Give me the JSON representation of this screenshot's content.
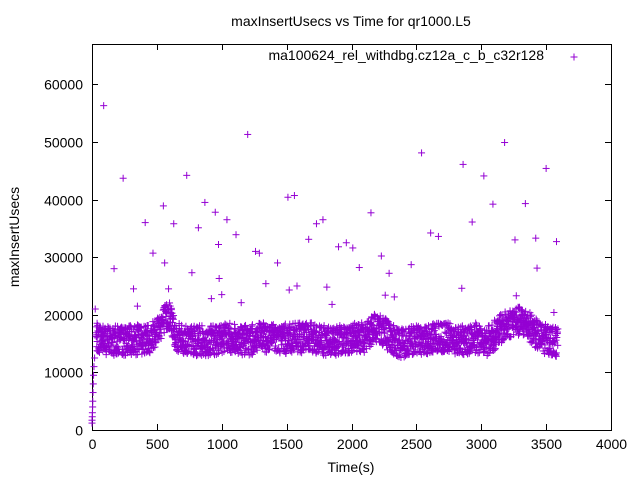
{
  "chart_data": {
    "type": "scatter",
    "title": "maxInsertUsecs vs Time for qr1000.L5",
    "xlabel": "Time(s)",
    "ylabel": "maxInsertUsecs",
    "xlim": [
      0,
      4000
    ],
    "ylim": [
      0,
      67000
    ],
    "xticks": [
      0,
      500,
      1000,
      1500,
      2000,
      2500,
      3000,
      3500,
      4000
    ],
    "yticks": [
      0,
      10000,
      20000,
      30000,
      40000,
      50000,
      60000
    ],
    "xtick_labels": [
      "0",
      "500",
      "1000",
      "1500",
      "2000",
      "2500",
      "3000",
      "3500",
      "4000"
    ],
    "ytick_labels": [
      "0",
      "10000",
      "20000",
      "30000",
      "40000",
      "50000",
      "60000"
    ],
    "grid": false,
    "legend_position": "top-right",
    "marker": "+",
    "color": "#9400d3",
    "series": [
      {
        "name": "ma100624_rel_withdbg.cz12a_c_b_c32r128",
        "points": [
          [
            0,
            1200
          ],
          [
            0,
            1700
          ],
          [
            2,
            2300
          ],
          [
            3,
            3000
          ],
          [
            5,
            4000
          ],
          [
            6,
            5000
          ],
          [
            8,
            6500
          ],
          [
            10,
            8000
          ],
          [
            12,
            9500
          ],
          [
            15,
            11000
          ],
          [
            20,
            12500
          ],
          [
            25,
            21000
          ],
          [
            40,
            16000
          ],
          [
            60,
            17500
          ],
          [
            80,
            15000
          ],
          [
            90,
            56300
          ],
          [
            100,
            14000
          ],
          [
            170,
            28000
          ],
          [
            240,
            43700
          ],
          [
            320,
            24500
          ],
          [
            350,
            21500
          ],
          [
            410,
            36000
          ],
          [
            470,
            30700
          ],
          [
            550,
            38900
          ],
          [
            560,
            29000
          ],
          [
            590,
            24500
          ],
          [
            630,
            35800
          ],
          [
            730,
            44200
          ],
          [
            770,
            27300
          ],
          [
            820,
            35100
          ],
          [
            870,
            39500
          ],
          [
            920,
            22800
          ],
          [
            950,
            37800
          ],
          [
            975,
            32200
          ],
          [
            980,
            26300
          ],
          [
            1000,
            23500
          ],
          [
            1040,
            36500
          ],
          [
            1110,
            33900
          ],
          [
            1150,
            22100
          ],
          [
            1200,
            51300
          ],
          [
            1260,
            31000
          ],
          [
            1290,
            30700
          ],
          [
            1340,
            25400
          ],
          [
            1430,
            29000
          ],
          [
            1510,
            40400
          ],
          [
            1520,
            24300
          ],
          [
            1560,
            40700
          ],
          [
            1580,
            25000
          ],
          [
            1670,
            33100
          ],
          [
            1730,
            35800
          ],
          [
            1780,
            36500
          ],
          [
            1810,
            24800
          ],
          [
            1850,
            21800
          ],
          [
            1900,
            31800
          ],
          [
            1960,
            32500
          ],
          [
            2010,
            31600
          ],
          [
            2060,
            28200
          ],
          [
            2150,
            37700
          ],
          [
            2230,
            30200
          ],
          [
            2260,
            23400
          ],
          [
            2290,
            27200
          ],
          [
            2330,
            23100
          ],
          [
            2460,
            28700
          ],
          [
            2540,
            48100
          ],
          [
            2610,
            34200
          ],
          [
            2670,
            33600
          ],
          [
            2850,
            24600
          ],
          [
            2860,
            46100
          ],
          [
            2930,
            36100
          ],
          [
            3020,
            44100
          ],
          [
            3090,
            39200
          ],
          [
            3180,
            49900
          ],
          [
            3260,
            33000
          ],
          [
            3270,
            23300
          ],
          [
            3340,
            39300
          ],
          [
            3420,
            33300
          ],
          [
            3430,
            28100
          ],
          [
            3500,
            45400
          ],
          [
            3560,
            20400
          ],
          [
            3580,
            32700
          ]
        ],
        "dense_band": [
          [
            30,
            16000
          ],
          [
            150,
            15500
          ],
          [
            300,
            15500
          ],
          [
            450,
            16000
          ],
          [
            550,
            19000
          ],
          [
            600,
            20000
          ],
          [
            650,
            16000
          ],
          [
            750,
            15500
          ],
          [
            900,
            15500
          ],
          [
            1050,
            16000
          ],
          [
            1200,
            15500
          ],
          [
            1300,
            16000
          ],
          [
            1400,
            16000
          ],
          [
            1500,
            15800
          ],
          [
            1600,
            16000
          ],
          [
            1700,
            16000
          ],
          [
            1800,
            15500
          ],
          [
            1900,
            15500
          ],
          [
            2000,
            16000
          ],
          [
            2100,
            16000
          ],
          [
            2200,
            18000
          ],
          [
            2250,
            17000
          ],
          [
            2350,
            15000
          ],
          [
            2450,
            15500
          ],
          [
            2550,
            15500
          ],
          [
            2650,
            16000
          ],
          [
            2750,
            16000
          ],
          [
            2850,
            15500
          ],
          [
            2950,
            16000
          ],
          [
            3050,
            15500
          ],
          [
            3150,
            17500
          ],
          [
            3250,
            19000
          ],
          [
            3350,
            18500
          ],
          [
            3450,
            16000
          ],
          [
            3550,
            15500
          ],
          [
            3590,
            15000
          ]
        ]
      }
    ]
  }
}
